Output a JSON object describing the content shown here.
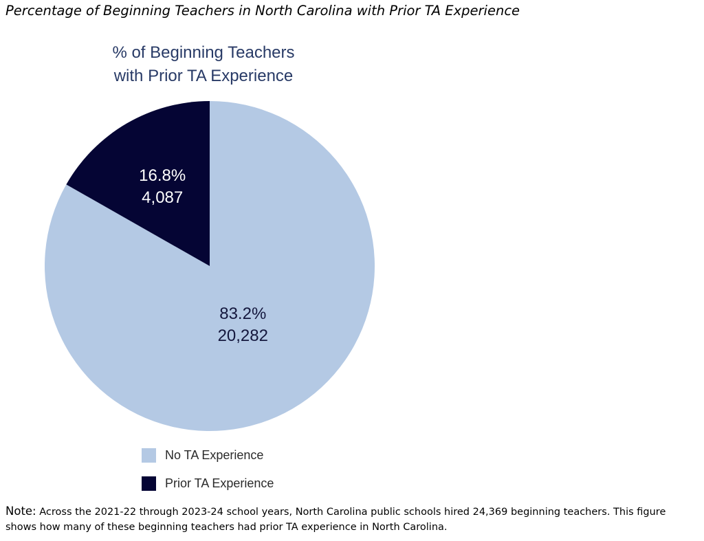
{
  "figure_title": "Percentage of Beginning Teachers in North Carolina with Prior TA Experience",
  "chart_data": {
    "type": "pie",
    "title_lines": [
      "% of Beginning Teachers",
      "with Prior TA Experience"
    ],
    "slices": [
      {
        "name": "No TA Experience",
        "percent_label": "83.2%",
        "count_label": "20,282",
        "value": 20282,
        "color": "#b4c9e4",
        "label_color": "#14173d"
      },
      {
        "name": "Prior TA Experience",
        "percent_label": "16.8%",
        "count_label": "4,087",
        "value": 4087,
        "color": "#050534",
        "label_color": "#ffffff"
      }
    ],
    "start": "12 o'clock",
    "direction": "clockwise",
    "legend_position": "bottom"
  },
  "note": {
    "label": "Note:",
    "text": " Across the 2021-22 through 2023-24 school years, North Carolina public schools hired 24,369 beginning teachers. This figure shows how many of these beginning teachers had prior TA experience in North Carolina."
  }
}
